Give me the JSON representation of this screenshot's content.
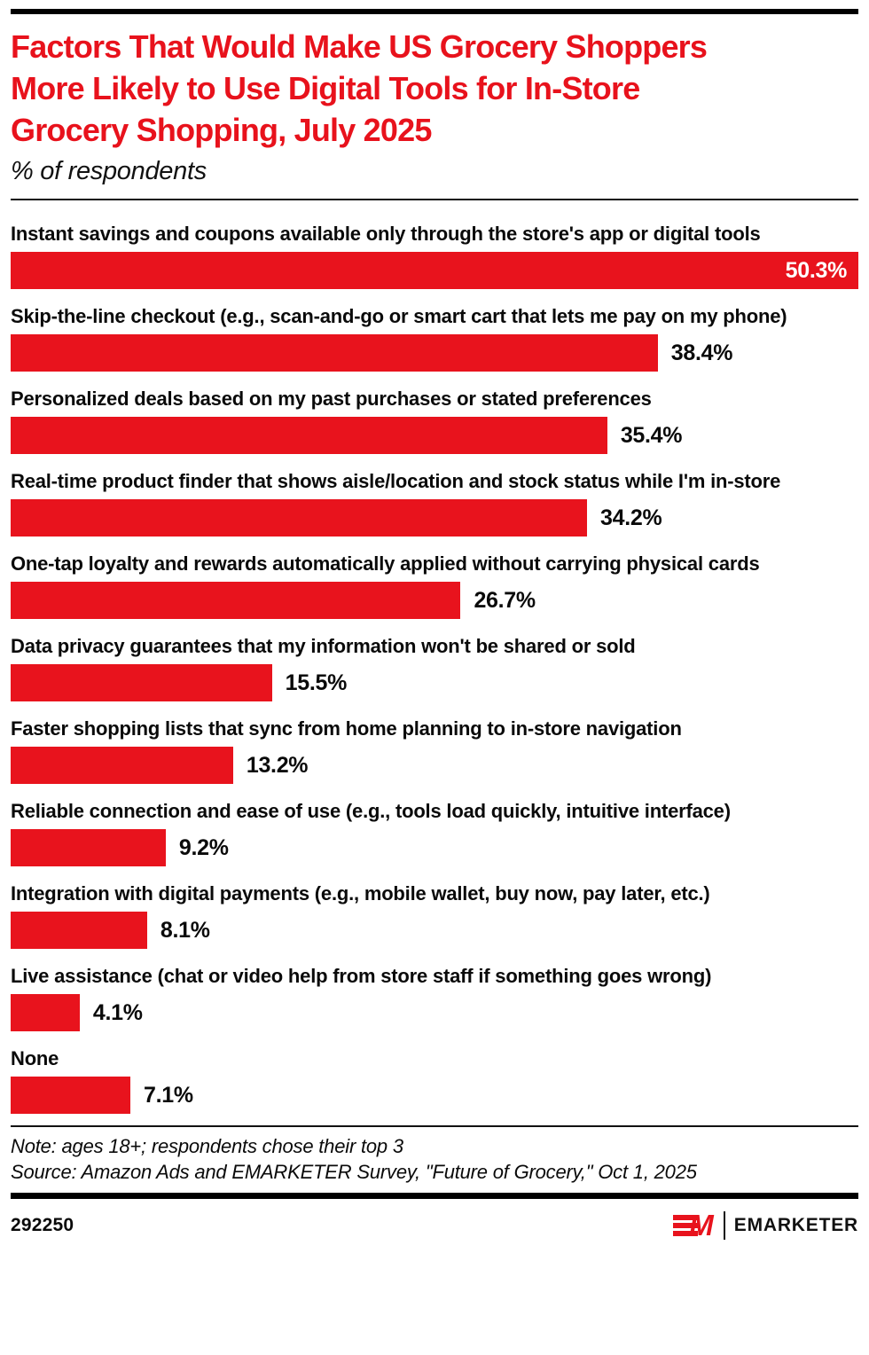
{
  "meta": {
    "accent_red": "#e8131d",
    "text_black": "#0a0a0a",
    "background": "#ffffff"
  },
  "header": {
    "title": "Factors That Would Make US Grocery Shoppers More Likely to Use Digital Tools for In-Store Grocery Shopping, July 2025",
    "title_lines": [
      "Factors That Would Make US Grocery Shoppers",
      "More Likely to Use Digital Tools for In-Store",
      "Grocery Shopping, July 2025"
    ],
    "subtitle": "% of respondents"
  },
  "chart_data": {
    "type": "bar",
    "orientation": "horizontal",
    "title": "Factors That Would Make US Grocery Shoppers More Likely to Use Digital Tools for In-Store Grocery Shopping, July 2025",
    "subtitle": "% of respondents",
    "unit": "%",
    "categories": [
      "Instant savings and coupons available only through the store's app or digital tools",
      "Skip-the-line checkout (e.g., scan-and-go or smart cart that lets me pay on my phone)",
      "Personalized deals based on my past purchases or stated preferences",
      "Real-time product finder that shows aisle/location and stock status while I'm in-store",
      "One-tap loyalty and rewards automatically applied without carrying physical cards",
      "Data privacy guarantees that my information won't be shared or sold",
      "Faster shopping lists that sync from home planning to in-store navigation",
      "Reliable connection and ease of use (e.g., tools load quickly, intuitive interface)",
      "Integration with digital payments (e.g., mobile wallet, buy now, pay later, etc.)",
      "Live assistance (chat or video help from store staff if something goes wrong)",
      "None"
    ],
    "values": [
      50.3,
      38.4,
      35.4,
      34.2,
      26.7,
      15.5,
      13.2,
      9.2,
      8.1,
      4.1,
      7.1
    ],
    "value_labels": [
      "50.3%",
      "38.4%",
      "35.4%",
      "34.2%",
      "26.7%",
      "15.5%",
      "13.2%",
      "9.2%",
      "8.1%",
      "4.1%",
      "7.1%"
    ],
    "xlim": [
      0,
      50.3
    ],
    "bar_color": "#e8131d",
    "grid": false,
    "legend": false,
    "value_label_position": "right of bar in black; longest bar labeled inside in white"
  },
  "footer": {
    "note": "Note: ages 18+; respondents chose their top 3",
    "source": "Source: Amazon Ads and EMARKETER Survey, \"Future of Grocery,\" Oct 1, 2025",
    "chart_id": "292250",
    "brand_wordmark": "EMARKETER",
    "brand_monogram_m": "M"
  }
}
